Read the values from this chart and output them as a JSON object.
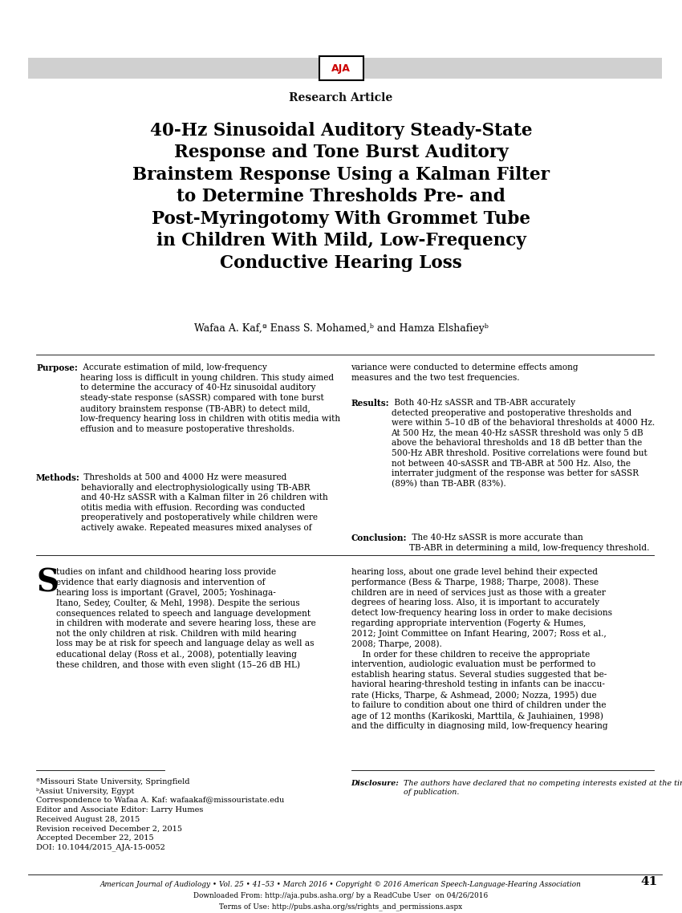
{
  "background_color": "#ffffff",
  "page_width": 8.5,
  "page_height": 11.38,
  "header_bar_color": "#d0d0d0",
  "aja_text_color": "#cc0000",
  "aja_text": "AJA",
  "research_article_text": "Research Article",
  "main_title_lines": [
    "40-Hz Sinusoidal Auditory Steady-State",
    "Response and Tone Burst Auditory",
    "Brainstem Response Using a Kalman Filter",
    "to Determine Thresholds Pre- and",
    "Post-Myringotomy With Grommet Tube",
    "in Children With Mild, Low-Frequency",
    "Conductive Hearing Loss"
  ],
  "authors_line": "Wafaa A. Kaf,ª Enass S. Mohamed,ᵇ and Hamza Elshafieyᵇ",
  "abstract_left_bold_label": "Purpose:",
  "abstract_left_col_after_purpose": " Accurate estimation of mild, low-frequency\nhearing loss is difficult in young children. This study aimed\nto determine the accuracy of 40-Hz sinusoidal auditory\nsteady-state response (sASSR) compared with tone burst\nauditory brainstem response (TB-ABR) to detect mild,\nlow-frequency hearing loss in children with otitis media with\neffusion and to measure postoperative thresholds.\n",
  "abstract_methods_label": "Methods:",
  "abstract_methods_after": " Thresholds at 500 and 4000 Hz were measured\nbehaviorally and electrophysiologically using TB-ABR\nand 40-Hz sASSR with a Kalman filter in 26 children with\notitis media with effusion. Recording was conducted\npreoperatively and postoperatively while children were\nactively awake. Repeated measures mixed analyses of",
  "abstract_right_col": "variance were conducted to determine effects among\nmeasures and the two test frequencies.\n",
  "abstract_results_label": "Results:",
  "abstract_results_after": " Both 40-Hz sASSR and TB-ABR accurately\ndetected preoperative and postoperative thresholds and\nwere within 5–10 dB of the behavioral thresholds at 4000 Hz.\nAt 500 Hz, the mean 40-Hz sASSR threshold was only 5 dB\nabove the behavioral thresholds and 18 dB better than the\n500-Hz ABR threshold. Positive correlations were found but\nnot between 40-sASSR and TB-ABR at 500 Hz. Also, the\ninterrater judgment of the response was better for sASSR\n(89%) than TB-ABR (83%).\n",
  "abstract_conclusion_label": "Conclusion:",
  "abstract_conclusion_after": " The 40-Hz sASSR is more accurate than\nTB-ABR in determining a mild, low-frequency threshold.",
  "body_left_text": "tudies on infant and childhood hearing loss provide\nevidence that early diagnosis and intervention of\nhearing loss is important (Gravel, 2005; Yoshinaga-\nItano, Sedey, Coulter, & Mehl, 1998). Despite the serious\nconsequences related to speech and language development\nin children with moderate and severe hearing loss, these are\nnot the only children at risk. Children with mild hearing\nloss may be at risk for speech and language delay as well as\neducational delay (Ross et al., 2008), potentially leaving\nthese children, and those with even slight (15–26 dB HL)",
  "body_right_text": "hearing loss, about one grade level behind their expected\nperformance (Bess & Tharpe, 1988; Tharpe, 2008). These\nchildren are in need of services just as those with a greater\ndegrees of hearing loss. Also, it is important to accurately\ndetect low-frequency hearing loss in order to make decisions\nregarding appropriate intervention (Fogerty & Humes,\n2012; Joint Committee on Infant Hearing, 2007; Ross et al.,\n2008; Tharpe, 2008).\n    In order for these children to receive the appropriate\nintervention, audiologic evaluation must be performed to\nestablish hearing status. Several studies suggested that be-\nhavioral hearing-threshold testing in infants can be inaccu-\nrate (Hicks, Tharpe, & Ashmead, 2000; Nozza, 1995) due\nto failure to condition about one third of children under the\nage of 12 months (Karikoski, Marttila, & Jauhiainen, 1998)\nand the difficulty in diagnosing mild, low-frequency hearing",
  "footnote_a": "ªMissouri State University, Springfield",
  "footnote_b": "ᵇAssiut University, Egypt",
  "footnote_correspondence": "Correspondence to Wafaa A. Kaf: wafaakaf@missouristate.edu",
  "footnote_editor": "Editor and Associate Editor: Larry Humes",
  "footnote_received": "Received August 28, 2015",
  "footnote_revision": "Revision received December 2, 2015",
  "footnote_accepted": "Accepted December 22, 2015",
  "footnote_doi": "DOI: 10.1044/2015_AJA-15-0052",
  "disclosure_text": "The authors have declared that no competing interests existed at the time\nof publication.",
  "bottom_journal": "American Journal of Audiology • Vol. 25 • 41–53 • March 2016 • Copyright © 2016 American Speech-Language-Hearing Association",
  "bottom_page_number": "41",
  "bottom_download": "Downloaded From: http://aja.pubs.asha.org/ by a ReadCube User  on 04/26/2016",
  "bottom_terms": "Terms of Use: http://pubs.asha.org/ss/rights_and_permissions.aspx"
}
